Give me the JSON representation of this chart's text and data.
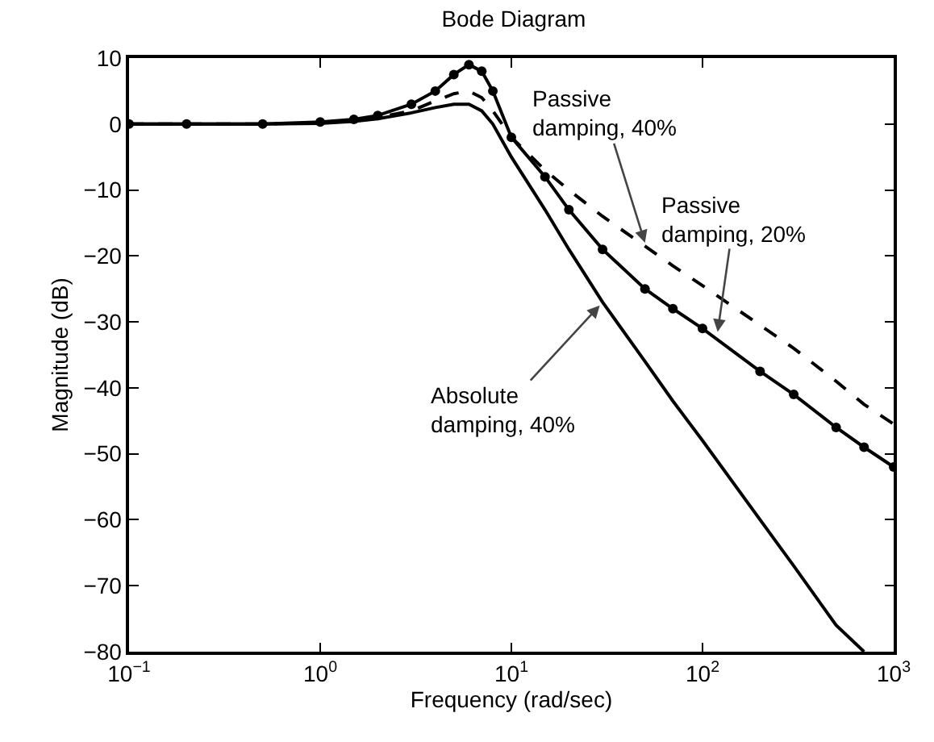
{
  "chart_data": {
    "type": "line",
    "title": "Bode Diagram",
    "xlabel": "Frequency (rad/sec)",
    "ylabel": "Magnitude (dB)",
    "log": "x",
    "grid": false,
    "x": [
      0.1,
      0.2,
      0.5,
      1,
      1.5,
      2,
      3,
      4,
      5,
      6,
      7,
      8,
      10,
      15,
      20,
      30,
      50,
      70,
      100,
      200,
      300,
      500,
      700,
      1000
    ],
    "series": [
      {
        "color": "#000000",
        "line_style": "dashed",
        "marker": "none",
        "values": [
          0,
          0,
          0,
          0.2,
          0.5,
          1,
          2,
          3.5,
          4.6,
          5,
          4,
          2,
          -2,
          -7,
          -10,
          -14,
          -18.5,
          -21.5,
          -24.5,
          -30.5,
          -34,
          -39,
          -42.5,
          -45.5
        ]
      },
      {
        "color": "#000000",
        "line_style": "solid",
        "marker": "circle",
        "values": [
          0,
          0,
          0,
          0.3,
          0.7,
          1.3,
          3,
          5,
          7.5,
          9,
          8,
          5,
          -2,
          -8,
          -13,
          -19,
          -25,
          -28,
          -31,
          -37.5,
          -41,
          -46,
          -49,
          -52
        ]
      },
      {
        "color": "#000000",
        "line_style": "solid",
        "marker": "none",
        "values": [
          0,
          0,
          0,
          0.1,
          0.4,
          0.8,
          1.7,
          2.5,
          3,
          3,
          2,
          0,
          -5,
          -13,
          -19,
          -27,
          -36,
          -42,
          -48,
          -60,
          -67,
          -76,
          -80,
          null
        ]
      }
    ],
    "xlim": [
      0.1,
      1000
    ],
    "ylim": [
      -80,
      10
    ],
    "xticks": [
      {
        "value": 0.1,
        "label": "10$^{−1}$"
      },
      {
        "value": 1,
        "label": "10$^{0}$"
      },
      {
        "value": 10,
        "label": "10$^{1}$"
      },
      {
        "value": 100,
        "label": "10$^{2}$"
      },
      {
        "value": 1000,
        "label": "10$^{3}$"
      }
    ],
    "yticks": [
      {
        "value": -80,
        "label": "−80"
      },
      {
        "value": -70,
        "label": "−70"
      },
      {
        "value": -60,
        "label": "−60"
      },
      {
        "value": -50,
        "label": "−50"
      },
      {
        "value": -40,
        "label": "−40"
      },
      {
        "value": -30,
        "label": "−30"
      },
      {
        "value": -20,
        "label": "−20"
      },
      {
        "value": -10,
        "label": "−10"
      },
      0,
      10
    ],
    "annotations": [
      {
        "text": "Passive\ndamping, 40%",
        "x": 50,
        "y": -18
      },
      {
        "text": "Passive\ndamping, 20%",
        "x": 120,
        "y": -31.5
      },
      {
        "text": "Absolute\ndamping, 40%",
        "x": 29,
        "y": -27.5
      }
    ]
  }
}
